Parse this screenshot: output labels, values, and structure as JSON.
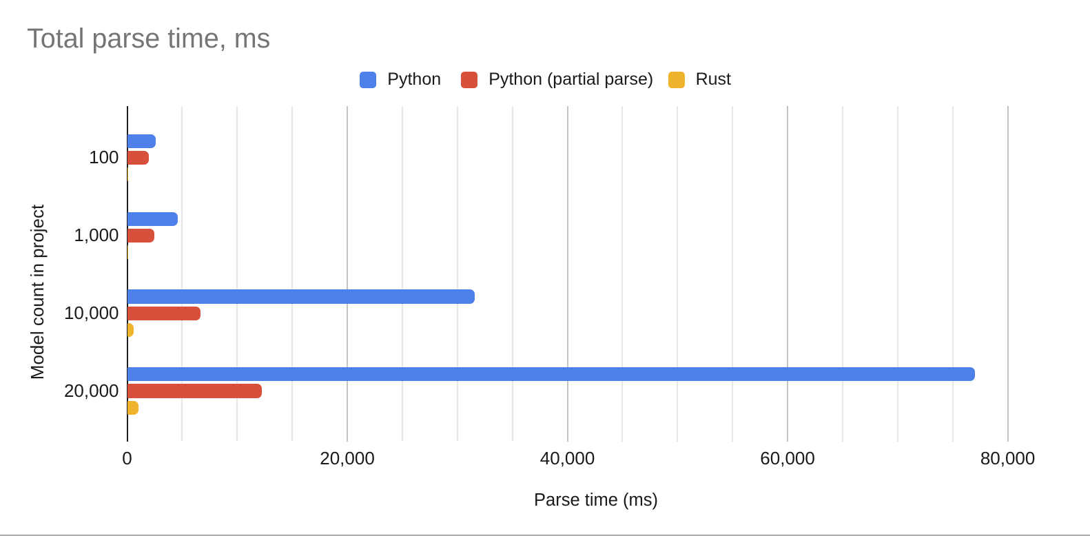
{
  "chart": {
    "title": "Total parse time, ms"
  },
  "chart_data": {
    "type": "bar",
    "orientation": "horizontal",
    "title": "Total parse time, ms",
    "xlabel": "Parse time (ms)",
    "ylabel": "Model count in project",
    "categories": [
      "100",
      "1,000",
      "10,000",
      "20,000"
    ],
    "series": [
      {
        "name": "Python",
        "color": "#4e80ea",
        "values": [
          2570,
          4570,
          31600,
          77000
        ]
      },
      {
        "name": "Python (partial parse)",
        "color": "#d6503c",
        "values": [
          1960,
          2450,
          6680,
          12230
        ]
      },
      {
        "name": "Rust",
        "color": "#efb42e",
        "values": [
          80,
          100,
          580,
          1060
        ]
      }
    ],
    "x_ticks": [
      {
        "value": 0,
        "label": "0"
      },
      {
        "value": 20000,
        "label": "20,000"
      },
      {
        "value": 40000,
        "label": "40,000"
      },
      {
        "value": 60000,
        "label": "60,000"
      },
      {
        "value": 80000,
        "label": "80,000"
      }
    ],
    "xlim": [
      0,
      85200
    ],
    "minor_grid_step": 5000,
    "major_grid_step": 20000,
    "grid": true,
    "legend_position": "top",
    "title_color": "#757575",
    "text_color": "#1a1a1a",
    "axis_line_color": "#1c1c1c",
    "major_gridline_color": "#c3c3c3",
    "minor_gridline_color": "#e6e6e6"
  }
}
